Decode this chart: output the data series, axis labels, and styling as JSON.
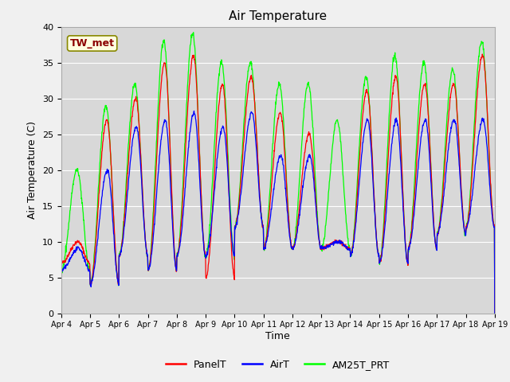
{
  "title": "Air Temperature",
  "ylabel": "Air Temperature (C)",
  "xlabel": "Time",
  "ylim": [
    0,
    40
  ],
  "annotation_label": "TW_met",
  "legend_labels": [
    "PanelT",
    "AirT",
    "AM25T_PRT"
  ],
  "line_colors": [
    "red",
    "blue",
    "lime"
  ],
  "background_color": "#d8d8d8",
  "fig_background": "#f0f0f0",
  "xtick_labels": [
    "Apr 4",
    "Apr 5",
    "Apr 6",
    "Apr 7",
    "Apr 8",
    "Apr 9",
    "Apr 10",
    "Apr 11",
    "Apr 12",
    "Apr 13",
    "Apr 14",
    "Apr 15",
    "Apr 16",
    "Apr 17",
    "Apr 18",
    "Apr 19"
  ],
  "n_days": 15,
  "samples_per_day": 96,
  "panel_peaks": [
    10,
    27,
    30,
    35,
    36,
    32,
    33,
    28,
    25,
    10,
    31,
    33,
    32,
    32,
    36
  ],
  "air_peaks": [
    9,
    20,
    26,
    27,
    28,
    26,
    28,
    22,
    22,
    10,
    27,
    27,
    27,
    27,
    27
  ],
  "am25_peaks": [
    20,
    29,
    32,
    38,
    39,
    35,
    35,
    32,
    32,
    27,
    33,
    36,
    35,
    34,
    38
  ],
  "panel_mins": [
    7,
    4,
    8,
    6,
    8,
    5,
    12,
    9,
    9,
    9,
    8,
    7,
    9,
    11,
    12
  ],
  "air_mins": [
    6,
    4,
    8,
    6,
    8,
    8,
    12,
    9,
    9,
    9,
    8,
    7,
    9,
    11,
    12
  ],
  "am25_mins": [
    6,
    4,
    8,
    6,
    8,
    8,
    12,
    9,
    9,
    9,
    8,
    7,
    9,
    11,
    12
  ]
}
